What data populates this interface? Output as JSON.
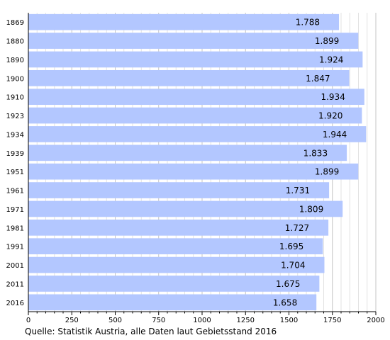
{
  "chart_data": {
    "type": "bar",
    "orientation": "horizontal",
    "categories": [
      "1869",
      "1880",
      "1890",
      "1900",
      "1910",
      "1923",
      "1934",
      "1939",
      "1951",
      "1961",
      "1971",
      "1981",
      "1991",
      "2001",
      "2011",
      "2016"
    ],
    "values": [
      1788,
      1899,
      1924,
      1847,
      1934,
      1920,
      1944,
      1833,
      1899,
      1731,
      1809,
      1727,
      1695,
      1704,
      1675,
      1658
    ],
    "value_labels": [
      "1.788",
      "1.899",
      "1.924",
      "1.847",
      "1.934",
      "1.920",
      "1.944",
      "1.833",
      "1.899",
      "1.731",
      "1.809",
      "1.727",
      "1.695",
      "1.704",
      "1.675",
      "1.658"
    ],
    "xlim": [
      0,
      2000
    ],
    "x_ticks": [
      "0",
      "250",
      "500",
      "750",
      "1000",
      "1250",
      "1500",
      "1750",
      "2000"
    ],
    "grid": "vertical",
    "bar_color": "#b3c7ff",
    "source": "Quelle: Statistik Austria, alle Daten laut Gebietsstand 2016"
  }
}
